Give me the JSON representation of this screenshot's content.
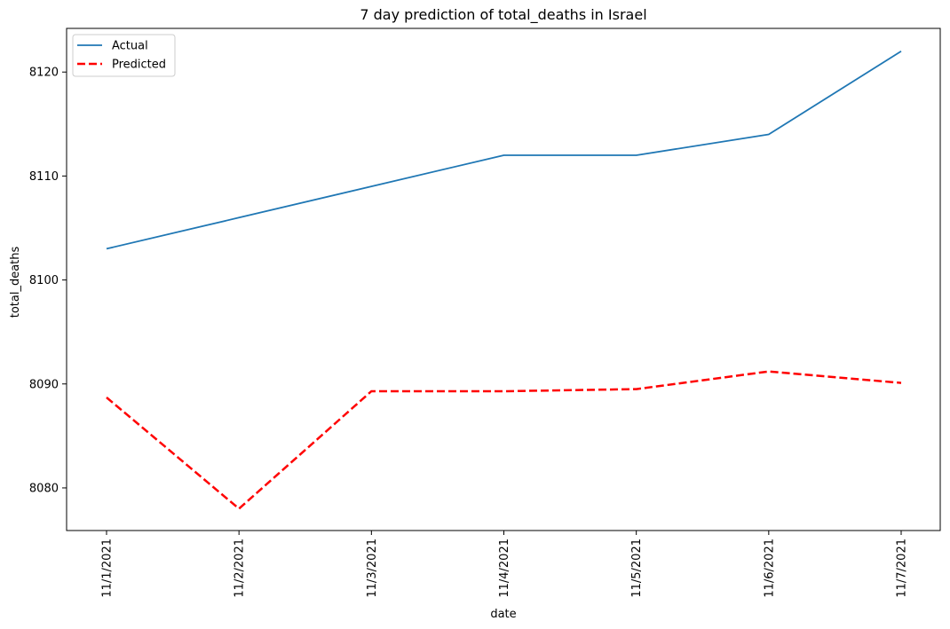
{
  "chart_data": {
    "type": "line",
    "title": "7 day prediction of total_deaths in Israel",
    "xlabel": "date",
    "ylabel": "total_deaths",
    "categories": [
      "11/1/2021",
      "11/2/2021",
      "11/3/2021",
      "11/4/2021",
      "11/5/2021",
      "11/6/2021",
      "11/7/2021"
    ],
    "series": [
      {
        "name": "Actual",
        "values": [
          8103,
          8106,
          8109,
          8112,
          8112,
          8114,
          8122
        ],
        "color": "#1f77b4",
        "style": "solid"
      },
      {
        "name": "Predicted",
        "values": [
          8088.7,
          8078.0,
          8089.3,
          8089.3,
          8089.5,
          8091.2,
          8090.1
        ],
        "color": "#ff0000",
        "style": "dashed"
      }
    ],
    "ylim": [
      8075.9,
      8124.2
    ],
    "yticks": [
      8080,
      8090,
      8100,
      8110,
      8120
    ],
    "grid": false,
    "legend_position": "top-left"
  }
}
